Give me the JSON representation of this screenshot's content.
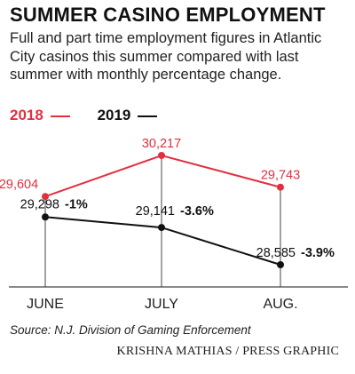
{
  "header": {
    "title": "SUMMER CASINO EMPLOYMENT",
    "subtitle": "Full and part time employment figures in Atlantic City casinos this summer compared with last summer with monthly percentage change."
  },
  "colors": {
    "series_2018": "#e03040",
    "series_2019": "#111111",
    "axis": "#444444"
  },
  "chart_data": {
    "type": "line",
    "categories": [
      "JUNE",
      "JULY",
      "AUG."
    ],
    "series": [
      {
        "name": "2018",
        "values": [
          29604,
          30217,
          29743
        ],
        "labels": [
          "29,604",
          "30,217",
          "29,743"
        ]
      },
      {
        "name": "2019",
        "values": [
          29298,
          29141,
          28585
        ],
        "labels": [
          "29,298",
          "29,141",
          "28,585"
        ],
        "change_labels": [
          "-1%",
          "-3.6%",
          "-3.9%"
        ]
      }
    ],
    "grid": false,
    "legend": "top-left"
  },
  "footer": {
    "source": "Source: N.J. Division of Gaming Enforcement",
    "credit": "KRISHNA MATHIAS / PRESS GRAPHIC"
  }
}
